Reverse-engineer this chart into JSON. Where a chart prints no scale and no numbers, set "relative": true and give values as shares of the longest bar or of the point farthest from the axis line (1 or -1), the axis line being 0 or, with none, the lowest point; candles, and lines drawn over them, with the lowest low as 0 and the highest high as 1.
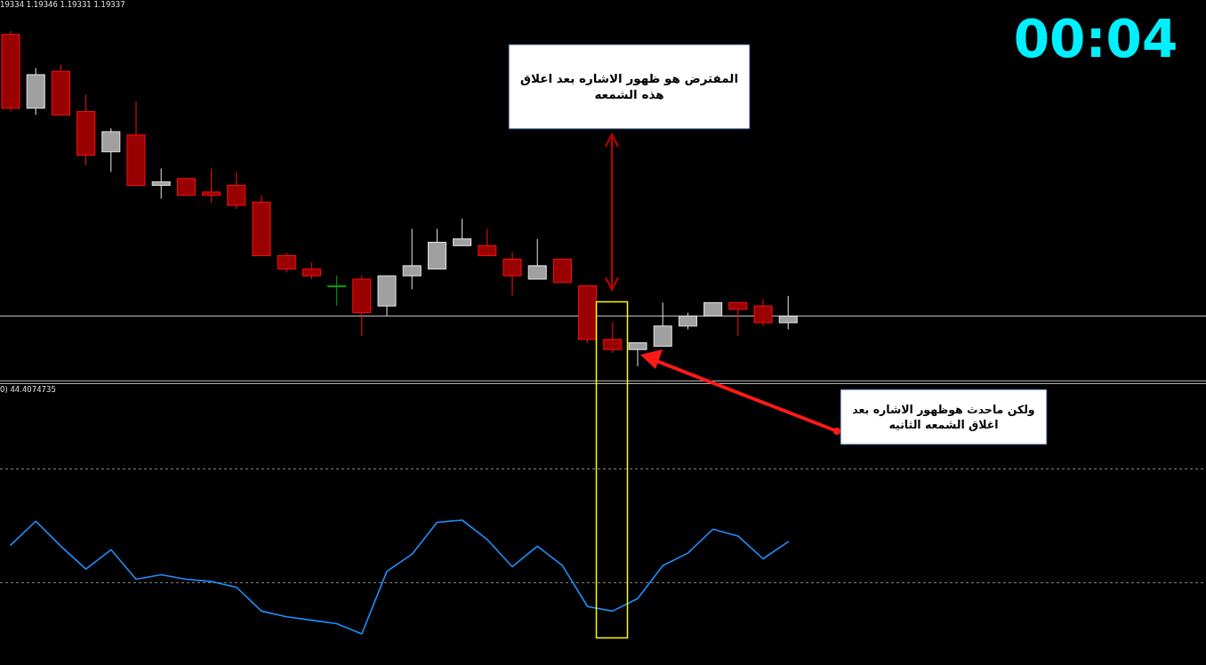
{
  "chart_data": [
    {
      "type": "candlestick",
      "relative": true,
      "categories": [
        null,
        null,
        null,
        null,
        null,
        null,
        null,
        null,
        null,
        null,
        null,
        null,
        null,
        null,
        null,
        null,
        null,
        null,
        null,
        null,
        null,
        null,
        null,
        null,
        null,
        null,
        null,
        null,
        null,
        null,
        null,
        null
      ],
      "ohlc": [
        [
          0.99,
          1.0,
          0.76,
          0.77
        ],
        [
          0.77,
          0.89,
          0.75,
          0.87
        ],
        [
          0.88,
          0.9,
          0.75,
          0.75
        ],
        [
          0.76,
          0.81,
          0.6,
          0.63
        ],
        [
          0.64,
          0.71,
          0.58,
          0.7
        ],
        [
          0.69,
          0.79,
          0.54,
          0.54
        ],
        [
          0.54,
          0.59,
          0.5,
          0.55
        ],
        [
          0.56,
          0.56,
          0.51,
          0.51
        ],
        [
          0.52,
          0.59,
          0.49,
          0.51
        ],
        [
          0.54,
          0.58,
          0.47,
          0.48
        ],
        [
          0.49,
          0.51,
          0.33,
          0.33
        ],
        [
          0.33,
          0.34,
          0.28,
          0.29
        ],
        [
          0.29,
          0.31,
          0.26,
          0.27
        ],
        [
          0.24,
          0.27,
          0.18,
          0.24
        ],
        [
          0.26,
          0.27,
          0.09,
          0.16
        ],
        [
          0.18,
          0.27,
          0.15,
          0.27
        ],
        [
          0.27,
          0.41,
          0.23,
          0.3
        ],
        [
          0.29,
          0.41,
          0.29,
          0.37
        ],
        [
          0.36,
          0.44,
          0.36,
          0.38
        ],
        [
          0.36,
          0.41,
          0.33,
          0.33
        ],
        [
          0.32,
          0.34,
          0.21,
          0.27
        ],
        [
          0.26,
          0.38,
          0.26,
          0.3
        ],
        [
          0.32,
          0.32,
          0.25,
          0.25
        ],
        [
          0.24,
          0.24,
          0.07,
          0.08
        ],
        [
          0.08,
          0.13,
          0.04,
          0.05
        ],
        [
          0.05,
          0.07,
          0.0,
          0.07
        ],
        [
          0.06,
          0.19,
          0.06,
          0.12
        ],
        [
          0.12,
          0.16,
          0.11,
          0.15
        ],
        [
          0.15,
          0.19,
          0.15,
          0.19
        ],
        [
          0.19,
          0.19,
          0.09,
          0.17
        ],
        [
          0.18,
          0.2,
          0.12,
          0.13
        ],
        [
          0.13,
          0.21,
          0.11,
          0.15
        ]
      ],
      "colors": [
        "#990000",
        "#a0a0a0",
        "#990000",
        "#990000",
        "#a0a0a0",
        "#990000",
        "#a0a0a0",
        "#990000",
        "#990000",
        "#990000",
        "#990000",
        "#990000",
        "#990000",
        "#00a000",
        "#990000",
        "#a0a0a0",
        "#a0a0a0",
        "#a0a0a0",
        "#a0a0a0",
        "#990000",
        "#990000",
        "#a0a0a0",
        "#990000",
        "#990000",
        "#990000",
        "#a0a0a0",
        "#a0a0a0",
        "#a0a0a0",
        "#a0a0a0",
        "#990000",
        "#990000",
        "#a0a0a0"
      ],
      "ref_lines": [
        {
          "axis": "y",
          "value": 0.15,
          "color": "#c8c8c8"
        }
      ],
      "annotations": [
        "19334 1.19346 1.19331 1.19337",
        "00:04",
        "المفترض هو ظهور الاشاره بعد اعلاق\nهذه الشمعه"
      ]
    },
    {
      "type": "line",
      "relative": true,
      "categories": [
        null,
        null,
        null,
        null,
        null,
        null,
        null,
        null,
        null,
        null,
        null,
        null,
        null,
        null,
        null,
        null,
        null,
        null,
        null,
        null,
        null,
        null,
        null,
        null,
        null,
        null,
        null,
        null,
        null,
        null,
        null,
        null
      ],
      "series": [
        {
          "color": "#1e90ff",
          "values": [
            0.78,
            0.99,
            0.77,
            0.57,
            0.74,
            0.48,
            0.52,
            0.48,
            0.46,
            0.41,
            0.2,
            0.15,
            0.12,
            0.09,
            0.0,
            0.55,
            0.7,
            0.98,
            1.0,
            0.83,
            0.59,
            0.77,
            0.6,
            0.24,
            0.2,
            0.31,
            0.6,
            0.71,
            0.92,
            0.86,
            0.66,
            0.81
          ]
        }
      ],
      "ref_lines": [
        {
          "axis": "y",
          "value": 1.45,
          "color": "#8a8a8a",
          "line_style": "dashed"
        },
        {
          "axis": "y",
          "value": 0.45,
          "color": "#8a8a8a",
          "line_style": "dashed"
        }
      ],
      "annotations": [
        "0) 44.4074735",
        "ولكن ماحدث هوظهور الاشاره بعد\nاغلاق الشمعه الثانيه"
      ]
    }
  ]
}
